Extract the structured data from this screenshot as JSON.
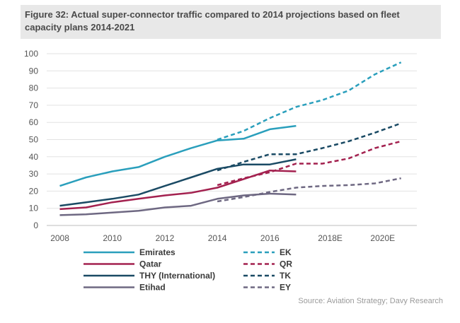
{
  "figure": {
    "title": "Figure 32: Actual super-connector traffic compared to 2014 projections based on fleet capacity plans 2014-2021",
    "source": "Source: Aviation Strategy; Davy Research"
  },
  "chart_data": {
    "type": "line",
    "title": "Figure 32: Actual super-connector traffic compared to 2014 projections based on fleet capacity plans 2014-2021",
    "xlabel": "",
    "ylabel": "",
    "xlim": [
      2007.5,
      2021.6
    ],
    "ylim": [
      0,
      100
    ],
    "y_ticks": [
      0,
      10,
      20,
      30,
      40,
      50,
      60,
      70,
      80,
      90,
      100
    ],
    "x_ticks": [
      {
        "x": 2008,
        "label": "2008"
      },
      {
        "x": 2010,
        "label": "2010"
      },
      {
        "x": 2012,
        "label": "2012"
      },
      {
        "x": 2014,
        "label": "2014"
      },
      {
        "x": 2016,
        "label": "2016"
      },
      {
        "x": 2018.3,
        "label": "2018E"
      },
      {
        "x": 2020.3,
        "label": "2020E"
      }
    ],
    "grid": true,
    "legend_position": "bottom",
    "colors": {
      "emirates": "#2a9fbc",
      "qatar": "#a3214f",
      "thy": "#1a4a64",
      "etihad": "#6e6882"
    },
    "series": [
      {
        "name": "Emirates",
        "style": "solid",
        "color": "#2a9fbc",
        "x": [
          2008,
          2009,
          2010,
          2011,
          2012,
          2013,
          2014,
          2015,
          2016,
          2017
        ],
        "y": [
          23,
          28,
          31.5,
          34,
          40,
          45,
          49.5,
          50.5,
          56,
          58
        ]
      },
      {
        "name": "Qatar",
        "style": "solid",
        "color": "#a3214f",
        "x": [
          2008,
          2009,
          2010,
          2011,
          2012,
          2013,
          2014,
          2015,
          2016,
          2017
        ],
        "y": [
          9.5,
          10.5,
          13.5,
          15.5,
          17.5,
          19,
          22,
          27,
          32,
          31.5
        ]
      },
      {
        "name": "THY (International)",
        "style": "solid",
        "color": "#1a4a64",
        "x": [
          2008,
          2009,
          2010,
          2011,
          2012,
          2013,
          2014,
          2015,
          2016,
          2017
        ],
        "y": [
          11.5,
          13.5,
          15.5,
          18,
          23,
          28,
          33,
          35.5,
          35.5,
          38.5
        ]
      },
      {
        "name": "Etihad",
        "style": "solid",
        "color": "#6e6882",
        "x": [
          2008,
          2009,
          2010,
          2011,
          2012,
          2013,
          2014,
          2015,
          2016,
          2017
        ],
        "y": [
          6,
          6.5,
          7.5,
          8.5,
          10.5,
          11.5,
          15.5,
          17.5,
          18.5,
          18
        ]
      },
      {
        "name": "EK",
        "style": "dashed",
        "color": "#2a9fbc",
        "x": [
          2014,
          2015,
          2016,
          2017,
          2018,
          2019,
          2020,
          2021
        ],
        "y": [
          50,
          55,
          62.5,
          69,
          73,
          78.5,
          88,
          95
        ]
      },
      {
        "name": "QR",
        "style": "dashed",
        "color": "#a3214f",
        "x": [
          2014,
          2015,
          2016,
          2017,
          2018,
          2019,
          2020,
          2021
        ],
        "y": [
          23.5,
          27.5,
          31,
          36,
          36,
          39,
          45,
          49
        ]
      },
      {
        "name": "TK",
        "style": "dashed",
        "color": "#1a4a64",
        "x": [
          2014,
          2015,
          2016,
          2017,
          2018,
          2019,
          2020,
          2021
        ],
        "y": [
          32,
          37,
          41.5,
          41.5,
          45,
          49,
          54,
          59.5
        ]
      },
      {
        "name": "EY",
        "style": "dashed",
        "color": "#6e6882",
        "x": [
          2014,
          2015,
          2016,
          2017,
          2018,
          2019,
          2020,
          2021
        ],
        "y": [
          14,
          16.5,
          19.5,
          22,
          23,
          23.5,
          24.5,
          27.5
        ]
      }
    ]
  }
}
